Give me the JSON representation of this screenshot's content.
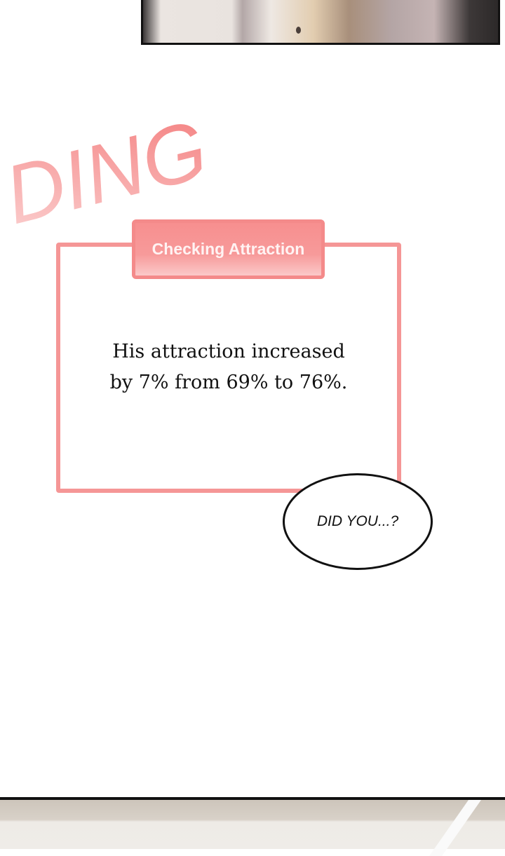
{
  "sfx": {
    "text": "DING",
    "color": "#f58a8a"
  },
  "notification": {
    "title": "Checking Attraction",
    "message_line1": "His attraction increased",
    "message_line2": "by 7% from 69% to 76%.",
    "accent_color": "#f59696"
  },
  "speech_bubble": {
    "text": "DID YOU...?"
  }
}
